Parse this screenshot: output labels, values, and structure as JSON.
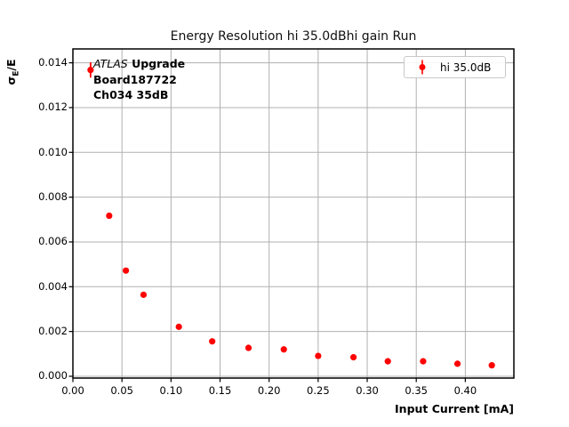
{
  "figure": {
    "title": "Energy Resolution hi 35.0dBhi gain Run",
    "xlabel": "Input Current [mA]",
    "ylabel_parts": {
      "sigma": "σ",
      "sub": "E",
      "rest": "/E"
    },
    "legend": {
      "label": "hi 35.0dB"
    },
    "annotation": {
      "atlas": "ATLAS",
      "upgrade": " Upgrade",
      "board": "Board187722",
      "channel": "Ch034 35dB"
    },
    "colors": {
      "marker": "#ff0000",
      "grid": "#b0b0b0",
      "frame": "#000000",
      "legend_border": "#c9c9c9",
      "text": "#000000"
    }
  },
  "chart_data": {
    "type": "scatter",
    "title": "Energy Resolution hi 35.0dBhi gain Run",
    "xlabel": "Input Current [mA]",
    "ylabel": "σ_E/E",
    "grid": true,
    "legend_position": "upper right",
    "xlim": [
      0,
      0.4495
    ],
    "ylim": [
      -8e-05,
      0.01462
    ],
    "xticks": [
      0.0,
      0.05,
      0.1,
      0.15,
      0.2,
      0.25,
      0.3,
      0.35,
      0.4
    ],
    "xtick_labels": [
      "0.00",
      "0.05",
      "0.10",
      "0.15",
      "0.20",
      "0.25",
      "0.30",
      "0.35",
      "0.40"
    ],
    "yticks": [
      0.0,
      0.002,
      0.004,
      0.006,
      0.008,
      0.01,
      0.012,
      0.014
    ],
    "ytick_labels": [
      "0.000",
      "0.002",
      "0.004",
      "0.006",
      "0.008",
      "0.010",
      "0.012",
      "0.014"
    ],
    "series": [
      {
        "name": "hi 35.0dB",
        "color": "#ff0000",
        "marker": "circle",
        "x": [
          0.018,
          0.037,
          0.054,
          0.072,
          0.108,
          0.142,
          0.179,
          0.215,
          0.25,
          0.286,
          0.321,
          0.357,
          0.392,
          0.427
        ],
        "y": [
          0.01368,
          0.00717,
          0.00472,
          0.00364,
          0.00221,
          0.00156,
          0.00127,
          0.0012,
          0.00091,
          0.00085,
          0.00067,
          0.00067,
          0.00056,
          0.00049
        ],
        "yerr": [
          0.00034,
          0,
          0,
          0,
          0,
          0,
          0,
          0,
          0,
          0,
          0,
          0,
          0,
          0
        ]
      }
    ]
  }
}
